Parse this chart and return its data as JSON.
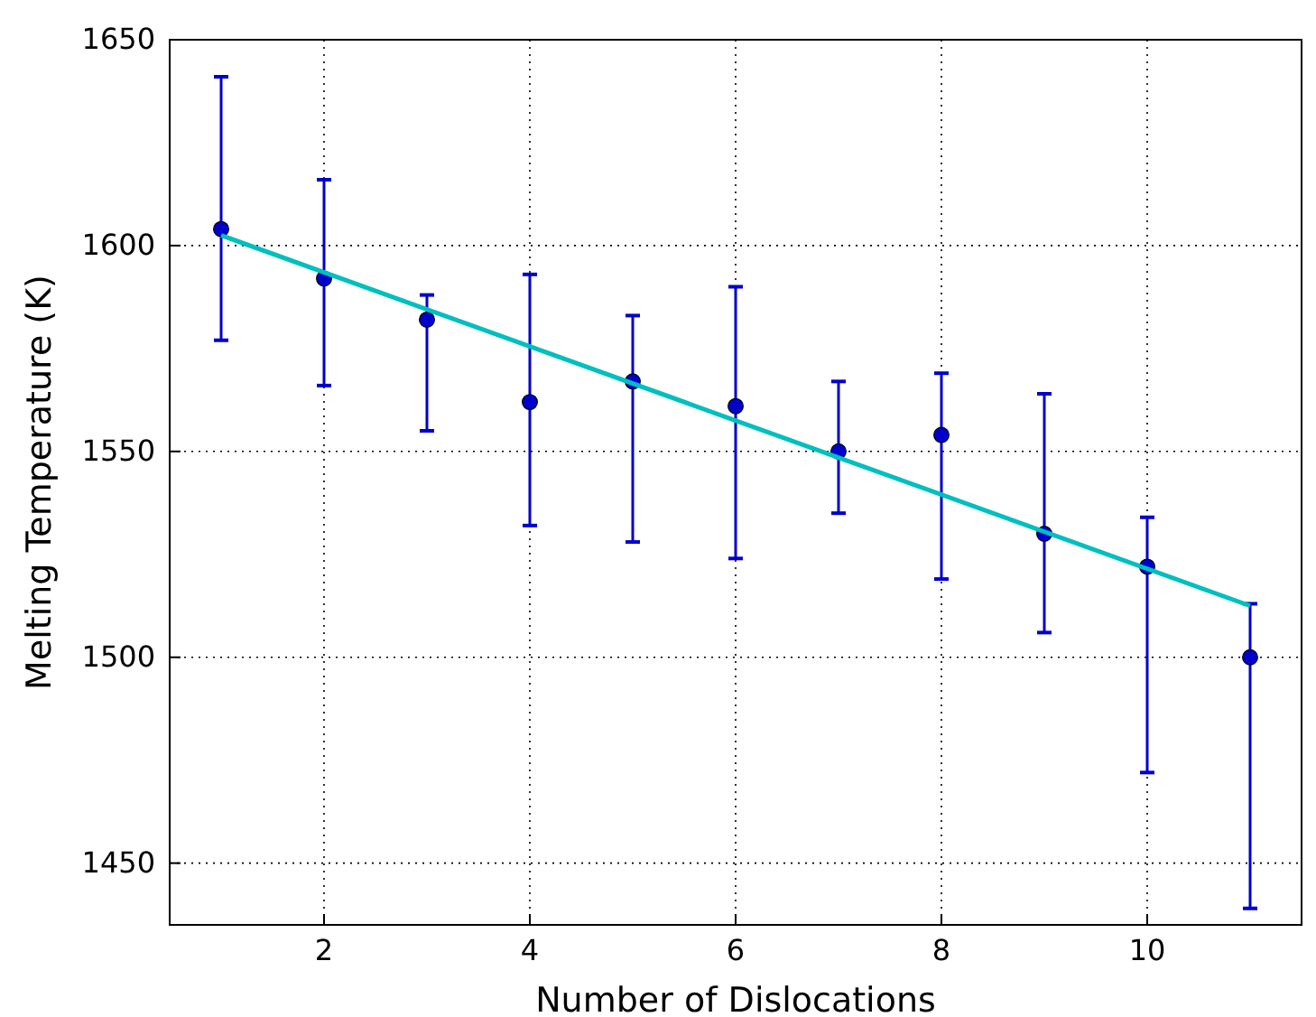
{
  "chart_data": {
    "type": "scatter",
    "xlabel": "Number of Dislocations",
    "ylabel": "Melting Temperature (K)",
    "xlim": [
      0.5,
      11.5
    ],
    "xticks": [
      2,
      4,
      6,
      8,
      10
    ],
    "ylim": [
      1435,
      1650
    ],
    "yticks": [
      1450,
      1500,
      1550,
      1600,
      1650
    ],
    "grid": true,
    "marker": "circle",
    "series": [
      {
        "color": "#0000cc",
        "x": [
          1,
          2,
          3,
          4,
          5,
          6,
          7,
          8,
          9,
          10,
          11
        ],
        "values": [
          1604,
          1592,
          1582,
          1562,
          1567,
          1561,
          1550,
          1554,
          1530,
          1522,
          1500
        ],
        "errors": [
          [
            1577,
            1641
          ],
          [
            1566,
            1616
          ],
          [
            1555,
            1588
          ],
          [
            1532,
            1593
          ],
          [
            1528,
            1583
          ],
          [
            1524,
            1590
          ],
          [
            1535,
            1567
          ],
          [
            1519,
            1569
          ],
          [
            1506,
            1564
          ],
          [
            1472,
            1534
          ],
          [
            1439,
            1513
          ]
        ]
      },
      {
        "type": "line",
        "color": "#00bfbf",
        "line_style": "solid",
        "marker": "none",
        "x": [
          1,
          11
        ],
        "values": [
          1602.5,
          1512.5
        ]
      }
    ]
  }
}
